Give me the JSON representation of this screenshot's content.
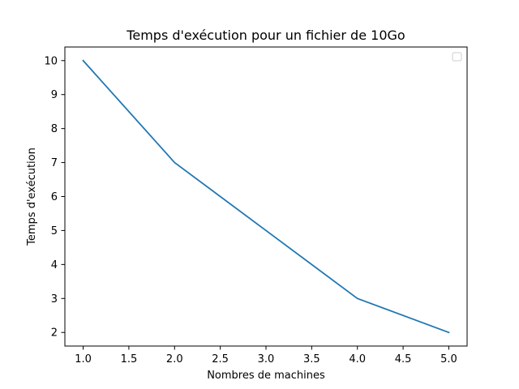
{
  "chart_data": {
    "type": "line",
    "title": "Temps d'exécution pour un fichier de 10Go",
    "xlabel": "Nombres de machines",
    "ylabel": "Temps d'exécution",
    "x": [
      1,
      2,
      3,
      4,
      5
    ],
    "series": [
      {
        "values": [
          10,
          7,
          5,
          3,
          2
        ],
        "color": "#1f77b4"
      }
    ],
    "xlim": [
      0.8,
      5.2
    ],
    "ylim": [
      1.6,
      10.4
    ],
    "xticks": [
      1.0,
      1.5,
      2.0,
      2.5,
      3.0,
      3.5,
      4.0,
      4.5,
      5.0
    ],
    "xtick_labels": [
      "1.0",
      "1.5",
      "2.0",
      "2.5",
      "3.0",
      "3.5",
      "4.0",
      "4.5",
      "5.0"
    ],
    "yticks": [
      2,
      3,
      4,
      5,
      6,
      7,
      8,
      9,
      10
    ],
    "ytick_labels": [
      "2",
      "3",
      "4",
      "5",
      "6",
      "7",
      "8",
      "9",
      "10"
    ],
    "grid": false,
    "legend": {
      "placement": "top-right",
      "entries": []
    }
  }
}
